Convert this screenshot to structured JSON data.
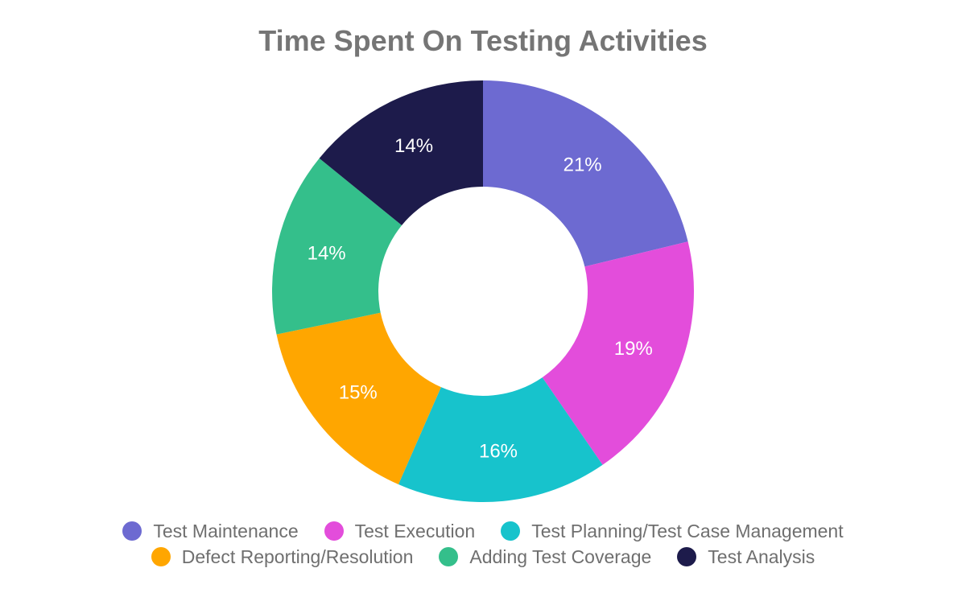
{
  "chart_data": {
    "type": "pie",
    "title": "Time Spent On Testing Activities",
    "donut": true,
    "legend_position": "bottom",
    "slices": [
      {
        "name": "Test Maintenance",
        "value": 21,
        "label": "21%",
        "color": "#6d6ad1"
      },
      {
        "name": "Test Execution",
        "value": 19,
        "label": "19%",
        "color": "#e34ddb"
      },
      {
        "name": "Test Planning/Test Case Management",
        "value": 16,
        "label": "16%",
        "color": "#17c3cc"
      },
      {
        "name": "Defect Reporting/Resolution",
        "value": 15,
        "label": "15%",
        "color": "#ffa600"
      },
      {
        "name": "Adding Test Coverage",
        "value": 14,
        "label": "14%",
        "color": "#34bf8b"
      },
      {
        "name": "Test Analysis",
        "value": 14,
        "label": "14%",
        "color": "#1d1b4b"
      }
    ]
  }
}
